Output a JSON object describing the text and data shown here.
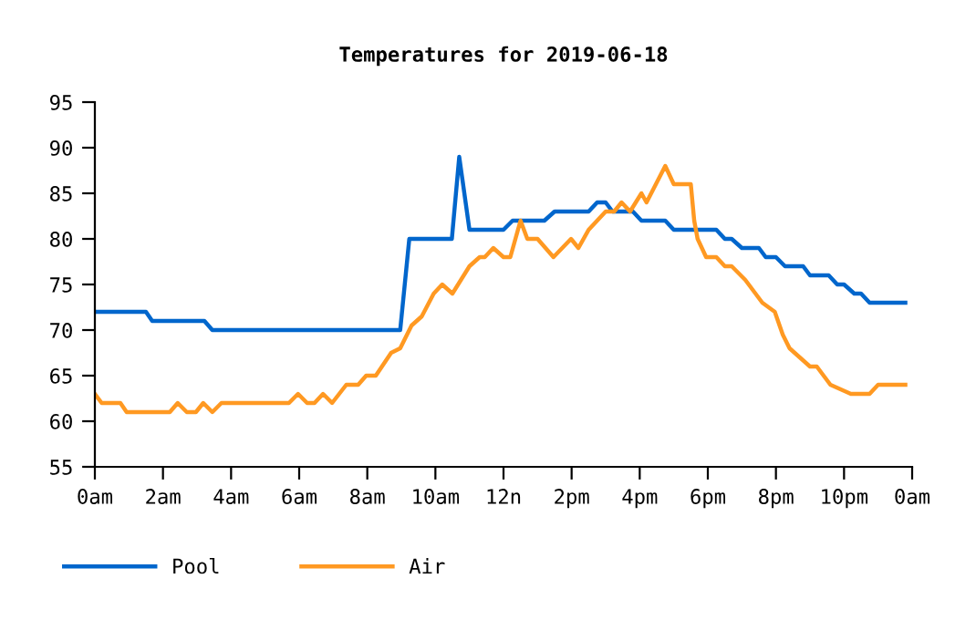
{
  "chart_data": {
    "type": "line",
    "title": "Temperatures for 2019-06-18",
    "xlim": [
      "2019-06-18T00:00",
      "2019-06-19T00:00"
    ],
    "xticks": [
      {
        "value": "2019-06-18T00:00",
        "label": "0am"
      },
      {
        "value": "2019-06-18T02:00",
        "label": "2am"
      },
      {
        "value": "2019-06-18T04:00",
        "label": "4am"
      },
      {
        "value": "2019-06-18T06:00",
        "label": "6am"
      },
      {
        "value": "2019-06-18T08:00",
        "label": "8am"
      },
      {
        "value": "2019-06-18T10:00",
        "label": "10am"
      },
      {
        "value": "2019-06-18T12:00",
        "label": "12n"
      },
      {
        "value": "2019-06-18T14:00",
        "label": "2pm"
      },
      {
        "value": "2019-06-18T16:00",
        "label": "4pm"
      },
      {
        "value": "2019-06-18T18:00",
        "label": "6pm"
      },
      {
        "value": "2019-06-18T20:00",
        "label": "8pm"
      },
      {
        "value": "2019-06-18T22:00",
        "label": "10pm"
      },
      {
        "value": "2019-06-19T00:00",
        "label": "0am"
      }
    ],
    "ylim": [
      55,
      95
    ],
    "yticks": [
      55,
      60,
      65,
      70,
      75,
      80,
      85,
      90,
      95
    ],
    "grid": false,
    "legend": "bottom left",
    "marker": "none",
    "line_style": "solid",
    "series": [
      {
        "name": "Pool",
        "color": "#0066cc",
        "x": [
          "2019-06-18T00:00",
          "2019-06-18T01:30",
          "2019-06-18T01:41",
          "2019-06-18T03:13",
          "2019-06-18T03:27",
          "2019-06-18T08:58",
          "2019-06-18T09:14",
          "2019-06-18T10:29",
          "2019-06-18T10:42",
          "2019-06-18T11:00",
          "2019-06-18T12:00",
          "2019-06-18T12:16",
          "2019-06-18T13:12",
          "2019-06-18T13:30",
          "2019-06-18T14:30",
          "2019-06-18T14:45",
          "2019-06-18T15:00",
          "2019-06-18T15:12",
          "2019-06-18T15:48",
          "2019-06-18T16:03",
          "2019-06-18T16:45",
          "2019-06-18T17:00",
          "2019-06-18T18:15",
          "2019-06-18T18:30",
          "2019-06-18T18:42",
          "2019-06-18T19:00",
          "2019-06-18T19:30",
          "2019-06-18T19:42",
          "2019-06-18T20:00",
          "2019-06-18T20:16",
          "2019-06-18T20:48",
          "2019-06-18T21:00",
          "2019-06-18T21:33",
          "2019-06-18T21:48",
          "2019-06-18T22:00",
          "2019-06-18T22:18",
          "2019-06-18T22:30",
          "2019-06-18T22:45",
          "2019-06-18T23:48"
        ],
        "values": [
          72,
          72,
          71,
          71,
          70,
          70,
          80,
          80,
          89,
          81,
          81,
          82,
          82,
          83,
          83,
          84,
          84,
          83,
          83,
          82,
          82,
          81,
          81,
          80,
          80,
          79,
          79,
          78,
          78,
          77,
          77,
          76,
          76,
          75,
          75,
          74,
          74,
          73,
          73
        ]
      },
      {
        "name": "Air",
        "color": "#ff9922",
        "x": [
          "2019-06-18T00:00",
          "2019-06-18T00:12",
          "2019-06-18T00:45",
          "2019-06-18T00:56",
          "2019-06-18T02:12",
          "2019-06-18T02:26",
          "2019-06-18T02:42",
          "2019-06-18T02:58",
          "2019-06-18T03:11",
          "2019-06-18T03:27",
          "2019-06-18T03:43",
          "2019-06-18T05:42",
          "2019-06-18T05:58",
          "2019-06-18T06:14",
          "2019-06-18T06:27",
          "2019-06-18T06:42",
          "2019-06-18T06:58",
          "2019-06-18T07:23",
          "2019-06-18T07:44",
          "2019-06-18T07:58",
          "2019-06-18T08:15",
          "2019-06-18T08:42",
          "2019-06-18T08:58",
          "2019-06-18T09:18",
          "2019-06-18T09:36",
          "2019-06-18T09:57",
          "2019-06-18T10:12",
          "2019-06-18T10:30",
          "2019-06-18T10:45",
          "2019-06-18T11:00",
          "2019-06-18T11:18",
          "2019-06-18T11:27",
          "2019-06-18T11:42",
          "2019-06-18T12:00",
          "2019-06-18T12:12",
          "2019-06-18T12:30",
          "2019-06-18T12:42",
          "2019-06-18T13:00",
          "2019-06-18T13:28",
          "2019-06-18T13:59",
          "2019-06-18T14:12",
          "2019-06-18T14:30",
          "2019-06-18T14:45",
          "2019-06-18T15:00",
          "2019-06-18T15:15",
          "2019-06-18T15:28",
          "2019-06-18T15:43",
          "2019-06-18T16:03",
          "2019-06-18T16:12",
          "2019-06-18T16:45",
          "2019-06-18T17:00",
          "2019-06-18T17:30",
          "2019-06-18T17:36",
          "2019-06-18T17:42",
          "2019-06-18T17:57",
          "2019-06-18T18:15",
          "2019-06-18T18:30",
          "2019-06-18T18:42",
          "2019-06-18T19:06",
          "2019-06-18T19:36",
          "2019-06-18T19:58",
          "2019-06-18T20:12",
          "2019-06-18T20:24",
          "2019-06-18T20:42",
          "2019-06-18T21:00",
          "2019-06-18T21:12",
          "2019-06-18T21:36",
          "2019-06-18T22:12",
          "2019-06-18T22:45",
          "2019-06-18T23:00",
          "2019-06-18T23:48"
        ],
        "values": [
          63,
          62,
          62,
          61,
          61,
          62,
          61,
          61,
          62,
          61,
          62,
          62,
          63,
          62,
          62,
          63,
          62,
          64,
          64,
          65,
          65,
          67.5,
          68,
          70.5,
          71.5,
          74,
          75,
          74,
          75.5,
          77,
          78,
          78,
          79,
          78,
          78,
          82,
          80,
          80,
          78,
          80,
          79,
          81,
          82,
          83,
          83,
          84,
          83,
          85,
          84,
          88,
          86,
          86,
          82,
          80,
          78,
          78,
          77,
          77,
          75.5,
          73,
          72,
          69.5,
          68,
          67,
          66,
          66,
          64,
          63,
          63,
          64,
          64
        ]
      }
    ]
  }
}
